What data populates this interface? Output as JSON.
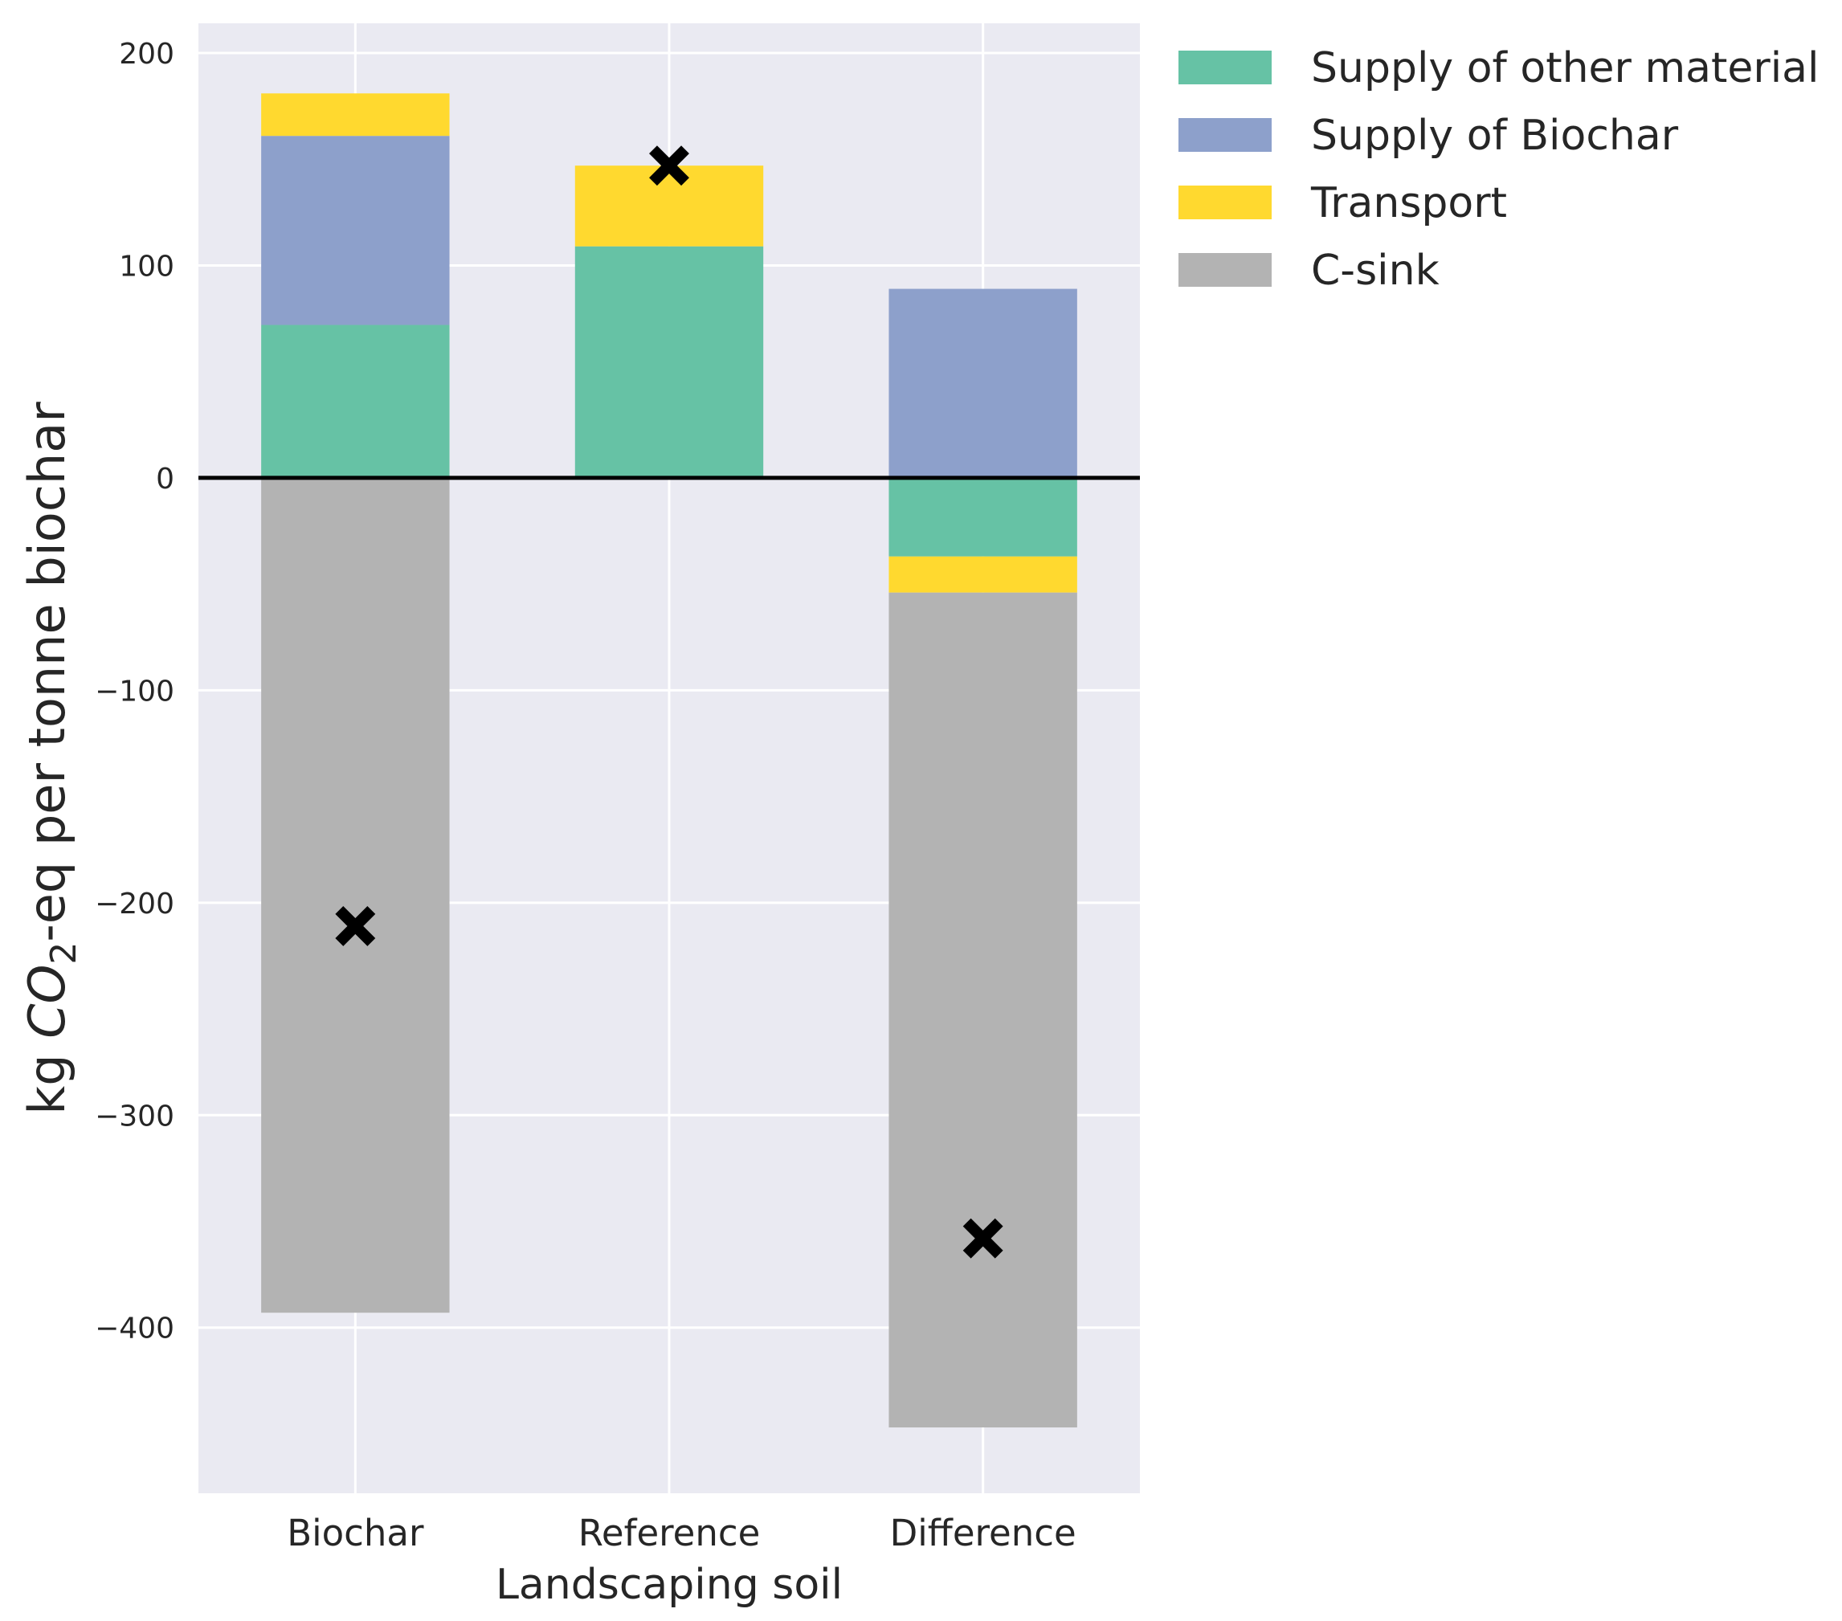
{
  "chart_data": {
    "type": "bar",
    "stacked": true,
    "categories": [
      "Biochar",
      "Reference",
      "Difference"
    ],
    "series": [
      {
        "name": "Supply of other material",
        "color": "#66c2a5",
        "values": [
          72,
          109,
          -37
        ]
      },
      {
        "name": "Supply of Biochar",
        "color": "#8da0cb",
        "values": [
          89,
          0,
          89
        ]
      },
      {
        "name": "Transport",
        "color": "#ffd92f",
        "values": [
          20,
          38,
          -17
        ]
      },
      {
        "name": "C-sink",
        "color": "#b3b3b3",
        "values": [
          -393,
          0,
          -393
        ]
      }
    ],
    "net_markers": {
      "marker": "X",
      "color": "#000000",
      "values": [
        -211,
        147,
        -358
      ]
    },
    "xlabel": "Landscaping soil",
    "ylabel": {
      "prefix": "kg ",
      "var": "CO",
      "sub": "2",
      "suffix": "-eq per tonne biochar"
    },
    "yticks": [
      200,
      100,
      0,
      -100,
      -200,
      -300,
      -400
    ],
    "ylim": [
      -478,
      214
    ],
    "grid": true,
    "background": "#eaeaf2",
    "zero_line": true,
    "legend_position": "outside-top-right"
  }
}
